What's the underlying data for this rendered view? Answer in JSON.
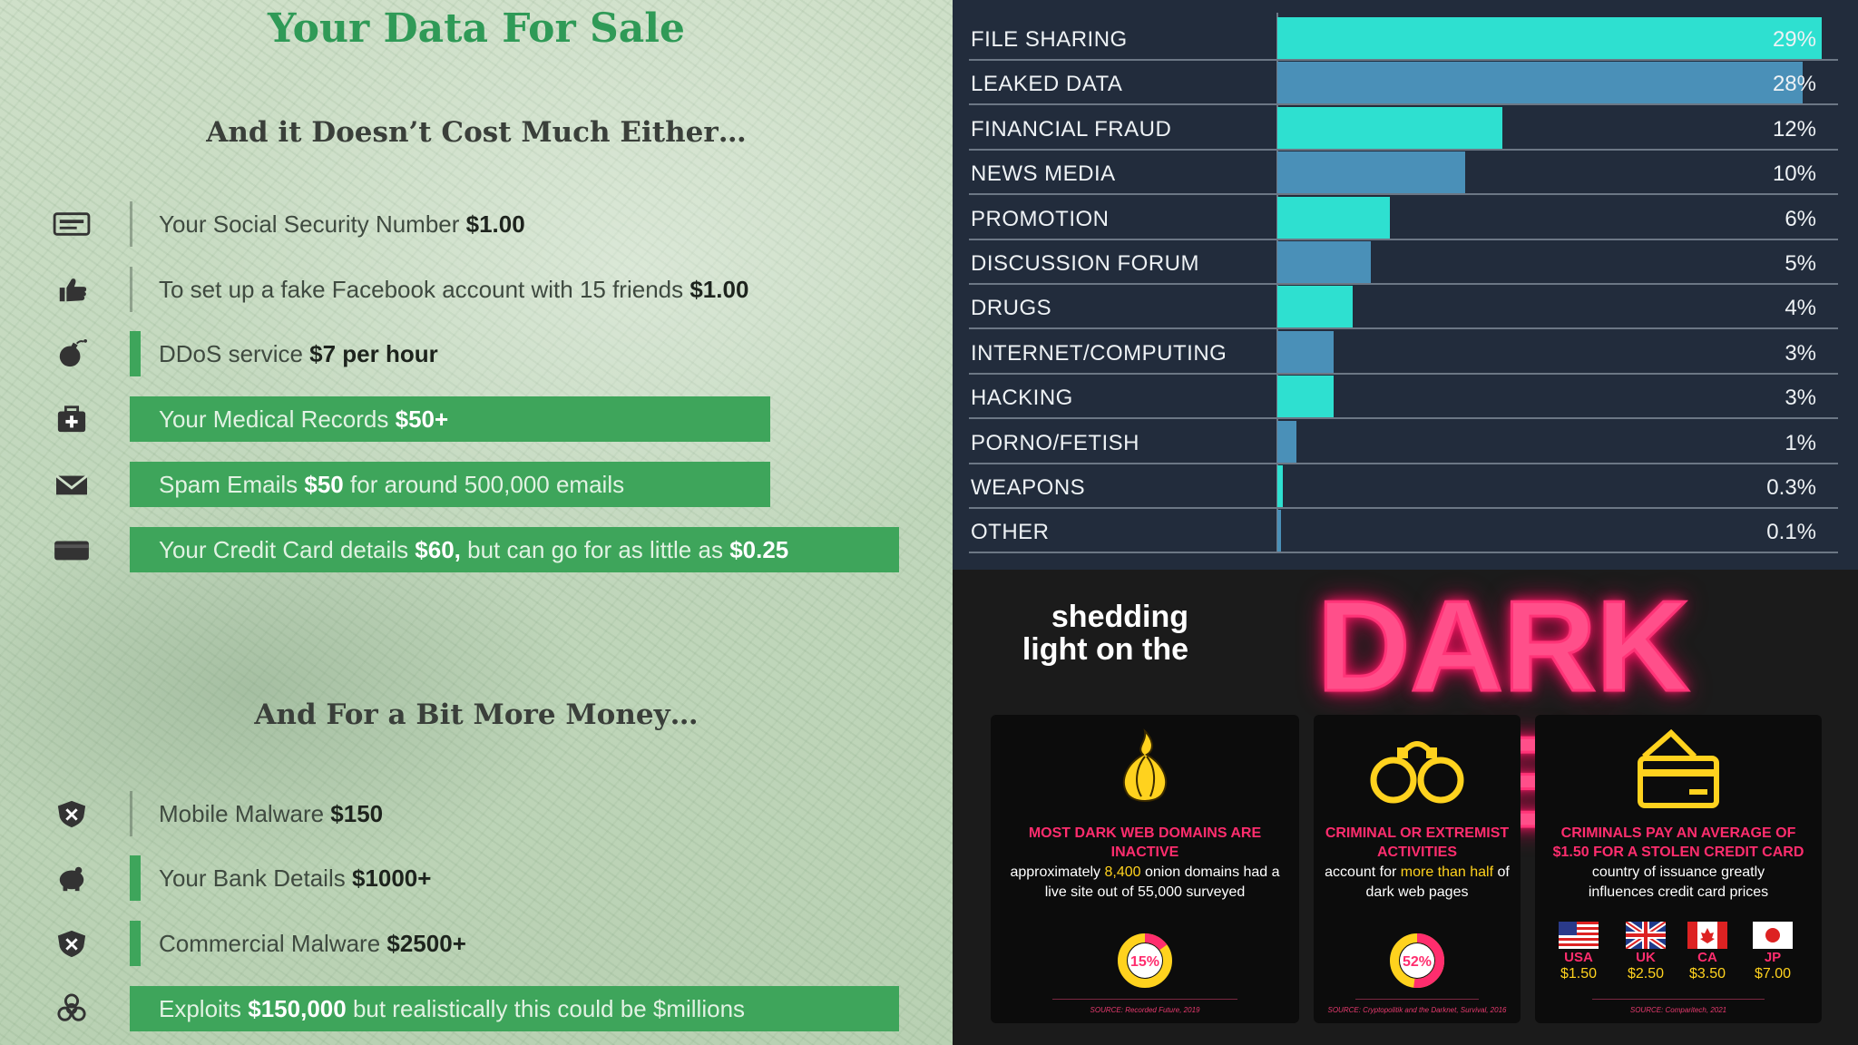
{
  "left": {
    "title": "Your Data For Sale",
    "subtitle1": "And it Doesn’t Cost Much Either…",
    "subtitle2": "And For a Bit More Money…",
    "items": [
      {
        "pre": "Your Social Security Number ",
        "bold": "$1.00",
        "mid": "",
        "bold2": "",
        "icon": "id-card-icon"
      },
      {
        "pre": "To set up a fake Facebook account with 15 friends ",
        "bold": "$1.00",
        "mid": "",
        "bold2": "",
        "icon": "thumbs-up-icon"
      },
      {
        "pre": "DDoS service ",
        "bold": "$7 per hour",
        "mid": "",
        "bold2": "",
        "icon": "bomb-icon"
      },
      {
        "pre": "Your Medical Records ",
        "bold": "$50+",
        "mid": "",
        "bold2": "",
        "icon": "medical-kit-icon"
      },
      {
        "pre": "Spam Emails ",
        "bold": "$50",
        "mid": " for around 500,000 emails",
        "bold2": "",
        "icon": "envelope-icon"
      },
      {
        "pre": "Your Credit Card details ",
        "bold": "$60,",
        "mid": " but can go for as little as ",
        "bold2": "$0.25",
        "icon": "credit-card-icon"
      },
      {
        "pre": "Mobile Malware ",
        "bold": "$150",
        "mid": "",
        "bold2": "",
        "icon": "shield-x-icon"
      },
      {
        "pre": "Your Bank Details ",
        "bold": "$1000+",
        "mid": "",
        "bold2": "",
        "icon": "piggy-bank-icon"
      },
      {
        "pre": "Commercial Malware ",
        "bold": "$2500+",
        "mid": "",
        "bold2": "",
        "icon": "shield-x-icon"
      },
      {
        "pre": "Exploits ",
        "bold": "$150,000",
        "mid": " but realistically this could be $millions",
        "bold2": "",
        "icon": "biohazard-icon"
      }
    ]
  },
  "chart_data": {
    "type": "bar",
    "orientation": "horizontal",
    "categories": [
      "FILE SHARING",
      "LEAKED DATA",
      "FINANCIAL FRAUD",
      "NEWS MEDIA",
      "PROMOTION",
      "DISCUSSION FORUM",
      "DRUGS",
      "INTERNET/COMPUTING",
      "HACKING",
      "PORNO/FETISH",
      "WEAPONS",
      "OTHER"
    ],
    "values": [
      29,
      28,
      12,
      10,
      6,
      5,
      4,
      3,
      3,
      1,
      0.3,
      0.1
    ],
    "labels": [
      "29%",
      "28%",
      "12%",
      "10%",
      "6%",
      "5%",
      "4%",
      "3%",
      "3%",
      "1%",
      "0.3%",
      "0.1%"
    ],
    "xlim": [
      0,
      29
    ],
    "colors": [
      "#2ee0d0",
      "#4a90b8"
    ],
    "title": "",
    "xlabel": "",
    "ylabel": ""
  },
  "darkweb": {
    "shedding": "shedding light on the",
    "title": "DARK WEB",
    "cards": [
      {
        "red": "MOST DARK WEB DOMAINS ARE INACTIVE",
        "pre": "approximately ",
        "y1": "8,400",
        "mid": " onion domains had a live site out of 55,000 surveyed",
        "y2": "",
        "end": "",
        "donut": "15%",
        "donut_value": 15,
        "source": "SOURCE: Recorded Future, 2019"
      },
      {
        "red": "CRIMINAL OR EXTREMIST ACTIVITIES",
        "pre": "account for ",
        "y1": "more than half",
        "mid": " of dark web pages",
        "y2": "",
        "end": "",
        "donut": "52%",
        "donut_value": 52,
        "source": "SOURCE: Cryptopolitik and the Darknet, Survival, 2016"
      },
      {
        "red": "CRIMINALS PAY AN AVERAGE OF $1.50 FOR A STOLEN CREDIT CARD",
        "pre": "country of issuance greatly influences credit card prices",
        "y1": "",
        "mid": "",
        "y2": "",
        "end": "",
        "source": "SOURCE: Comparitech, 2021",
        "flags": [
          {
            "code": "USA",
            "price": "$1.50"
          },
          {
            "code": "UK",
            "price": "$2.50"
          },
          {
            "code": "CA",
            "price": "$3.50"
          },
          {
            "code": "JP",
            "price": "$7.00"
          }
        ]
      }
    ],
    "colors": {
      "neon": "#ff3377",
      "yellow": "#ffd21e"
    }
  }
}
